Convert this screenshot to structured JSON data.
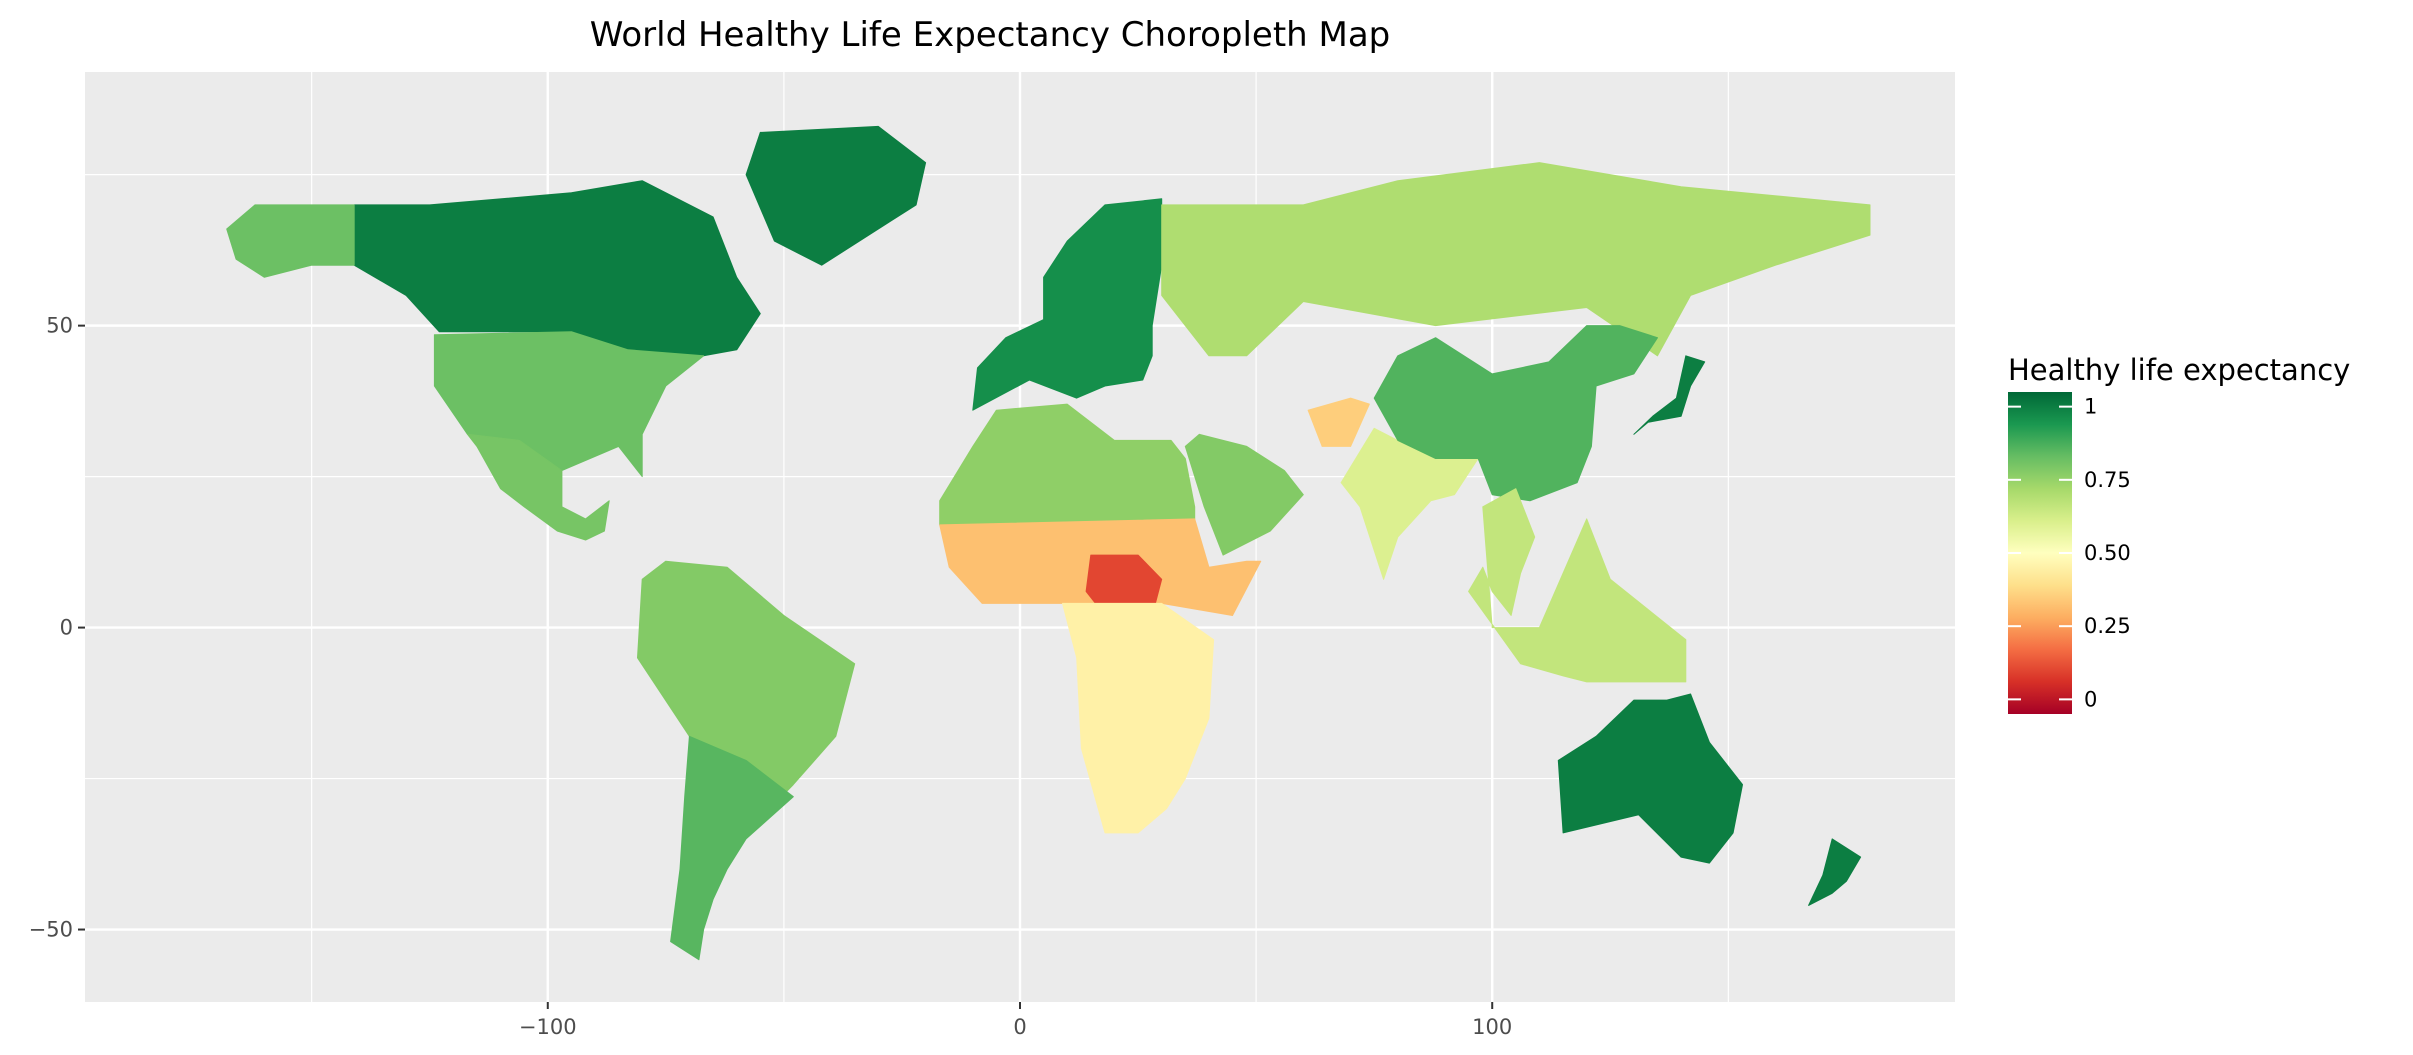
{
  "chart_data": {
    "type": "choropleth",
    "title": "World Healthy Life Expectancy Choropleth Map",
    "xlabel": "",
    "ylabel": "",
    "xlim": [
      -198,
      198
    ],
    "ylim": [
      -62,
      92
    ],
    "x_ticks": [
      {
        "value": -100,
        "label": "−100"
      },
      {
        "value": 0,
        "label": "0"
      },
      {
        "value": 100,
        "label": "100"
      }
    ],
    "y_ticks": [
      {
        "value": 50,
        "label": "50"
      },
      {
        "value": 0,
        "label": "0"
      },
      {
        "value": -50,
        "label": "−50"
      }
    ],
    "grid": true,
    "panel_background": "#ebebeb",
    "gridline_color": "#ffffff",
    "legend": {
      "title": "Healthy life expectancy",
      "position": "right",
      "range": [
        -0.05,
        1.05
      ],
      "breaks": [
        {
          "value": 1,
          "label": "1"
        },
        {
          "value": 0.75,
          "label": "0.75"
        },
        {
          "value": 0.5,
          "label": "0.50"
        },
        {
          "value": 0.25,
          "label": "0.25"
        },
        {
          "value": 0,
          "label": "0"
        }
      ],
      "colors": [
        "#a50026",
        "#d73027",
        "#f46d43",
        "#fdae61",
        "#fee08b",
        "#ffffbf",
        "#d9ef8b",
        "#a6d96a",
        "#66bd63",
        "#1a9850",
        "#006837"
      ]
    },
    "regions": [
      {
        "name": "North America",
        "value": 1.0
      },
      {
        "name": "United States",
        "value": 0.82
      },
      {
        "name": "Mexico",
        "value": 0.8
      },
      {
        "name": "Alaska",
        "value": 0.82
      },
      {
        "name": "Greenland",
        "value": 1.0
      },
      {
        "name": "South America",
        "value": 0.78
      },
      {
        "name": "Southern South America",
        "value": 0.85
      },
      {
        "name": "Europe",
        "value": 0.96
      },
      {
        "name": "Russia",
        "value": 0.7
      },
      {
        "name": "North Africa",
        "value": 0.76
      },
      {
        "name": "Sahel",
        "value": 0.32
      },
      {
        "name": "Central Africa",
        "value": 0.1
      },
      {
        "name": "Southern Africa",
        "value": 0.45
      },
      {
        "name": "Arabia",
        "value": 0.78
      },
      {
        "name": "Afghanistan",
        "value": 0.35
      },
      {
        "name": "India",
        "value": 0.6
      },
      {
        "name": "China",
        "value": 0.86
      },
      {
        "name": "Southeast Asia",
        "value": 0.66
      },
      {
        "name": "Japan",
        "value": 1.0
      },
      {
        "name": "Australia",
        "value": 1.0
      },
      {
        "name": "New Zealand",
        "value": 1.0
      }
    ]
  }
}
